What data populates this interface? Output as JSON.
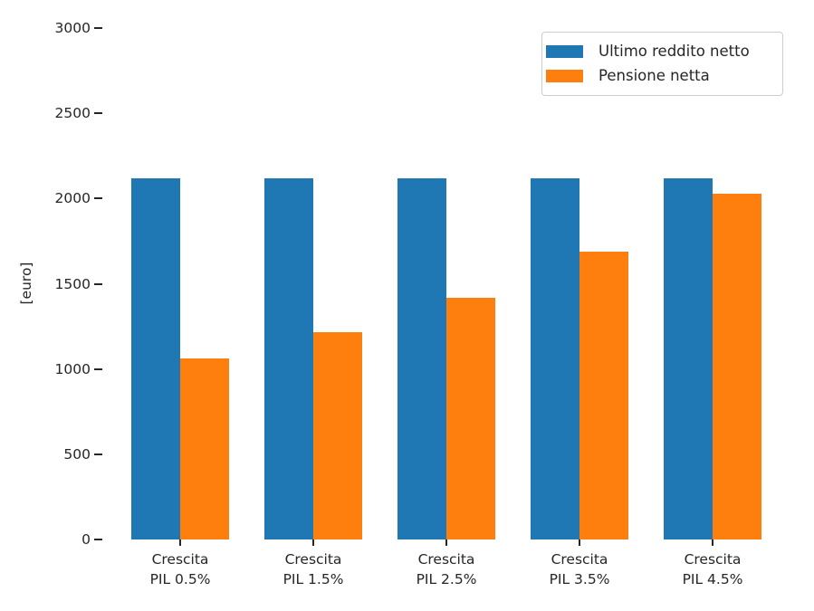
{
  "chart_data": {
    "type": "bar",
    "categories": [
      "Crescita\nPIL 0.5%",
      "Crescita\nPIL 1.5%",
      "Crescita\nPIL 2.5%",
      "Crescita\nPIL 3.5%",
      "Crescita\nPIL 4.5%"
    ],
    "series": [
      {
        "name": "Ultimo reddito netto",
        "color": "#1f77b4",
        "values": [
          2120,
          2120,
          2120,
          2120,
          2120
        ]
      },
      {
        "name": "Pensione netta",
        "color": "#ff7f0e",
        "values": [
          1060,
          1215,
          1420,
          1690,
          2030
        ]
      }
    ],
    "title": "",
    "xlabel": "",
    "ylabel": "[euro]",
    "yticks": [
      0,
      500,
      1000,
      1500,
      2000,
      2500,
      3000
    ],
    "ylim": [
      0,
      3000
    ],
    "legend": {
      "position": "upper right"
    },
    "grid": false,
    "background_color": "#ffffff",
    "text_color": "#262626"
  }
}
